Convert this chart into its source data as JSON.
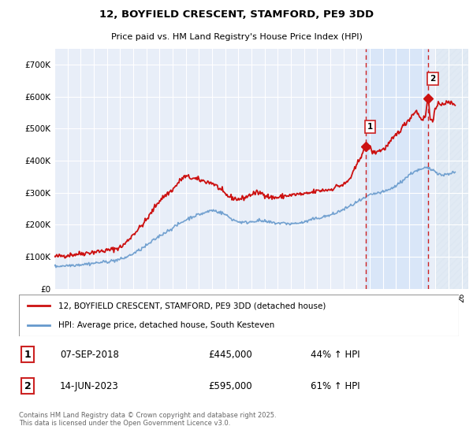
{
  "title": "12, BOYFIELD CRESCENT, STAMFORD, PE9 3DD",
  "subtitle": "Price paid vs. HM Land Registry's House Price Index (HPI)",
  "ylim": [
    0,
    750000
  ],
  "yticks": [
    0,
    100000,
    200000,
    300000,
    400000,
    500000,
    600000,
    700000
  ],
  "ytick_labels": [
    "£0",
    "£100K",
    "£200K",
    "£300K",
    "£400K",
    "£500K",
    "£600K",
    "£700K"
  ],
  "background_color": "#e8eef8",
  "grid_color": "#ffffff",
  "red_line_color": "#cc1111",
  "blue_line_color": "#6699cc",
  "marker1_year": 2018.69,
  "marker1_value": 445000,
  "marker2_year": 2023.45,
  "marker2_value": 595000,
  "legend_line1": "12, BOYFIELD CRESCENT, STAMFORD, PE9 3DD (detached house)",
  "legend_line2": "HPI: Average price, detached house, South Kesteven",
  "marker1_date": "07-SEP-2018",
  "marker1_price": "£445,000",
  "marker1_pct": "44% ↑ HPI",
  "marker2_date": "14-JUN-2023",
  "marker2_price": "£595,000",
  "marker2_pct": "61% ↑ HPI",
  "footnote": "Contains HM Land Registry data © Crown copyright and database right 2025.\nThis data is licensed under the Open Government Licence v3.0.",
  "xmin": 1995,
  "xmax": 2026.5
}
